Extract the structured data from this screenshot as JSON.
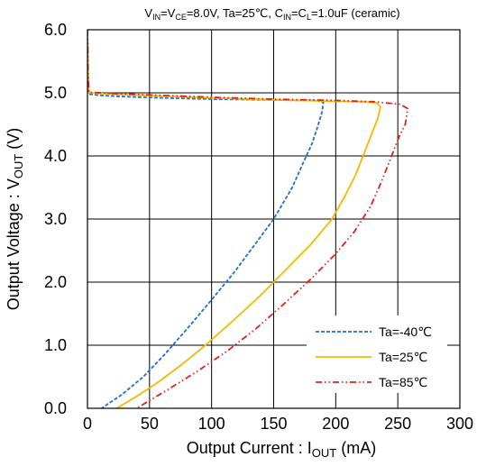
{
  "chart_data": {
    "type": "line",
    "subtitle": {
      "p1": "V",
      "p1_sub": "IN",
      "p2": "=V",
      "p2_sub": "CE",
      "p3": "=8.0V,  Ta=25℃, C",
      "p3_sub": "IN",
      "p4": "=C",
      "p4_sub": "L",
      "p5": "=1.0uF (ceramic)"
    },
    "xlabel": {
      "main": "Output Current : I",
      "sub": "OUT",
      "unit": " (mA)"
    },
    "ylabel": {
      "main": "Output Voltage : V",
      "sub": "OUT",
      "unit": " (V)"
    },
    "xlim": [
      0,
      300
    ],
    "ylim": [
      0,
      6
    ],
    "x_ticks": [
      "0",
      "50",
      "100",
      "150",
      "200",
      "250",
      "300"
    ],
    "y_ticks": [
      "0.0",
      "1.0",
      "2.0",
      "3.0",
      "4.0",
      "5.0",
      "6.0"
    ],
    "grid": true,
    "legend_position": "bottom-right",
    "series": [
      {
        "name": "Ta=-40℃",
        "color": "#1f6fd0",
        "dash": "dashed",
        "points": [
          [
            0,
            6.0
          ],
          [
            0.5,
            5.3
          ],
          [
            1,
            4.98
          ],
          [
            10,
            4.96
          ],
          [
            30,
            4.94
          ],
          [
            60,
            4.92
          ],
          [
            100,
            4.9
          ],
          [
            140,
            4.89
          ],
          [
            170,
            4.88
          ],
          [
            184,
            4.88
          ],
          [
            190,
            4.85
          ],
          [
            189,
            4.7
          ],
          [
            186,
            4.5
          ],
          [
            181,
            4.2
          ],
          [
            174,
            3.9
          ],
          [
            165,
            3.5
          ],
          [
            150,
            3.0
          ],
          [
            135,
            2.6
          ],
          [
            118,
            2.15
          ],
          [
            100,
            1.72
          ],
          [
            82,
            1.3
          ],
          [
            62,
            0.85
          ],
          [
            45,
            0.5
          ],
          [
            28,
            0.22
          ],
          [
            15,
            0.05
          ],
          [
            8,
            -0.05
          ]
        ]
      },
      {
        "name": "Ta=25℃",
        "color": "#f5b800",
        "dash": "solid",
        "points": [
          [
            0,
            6.0
          ],
          [
            0.5,
            5.3
          ],
          [
            1,
            5.0
          ],
          [
            20,
            4.98
          ],
          [
            60,
            4.95
          ],
          [
            100,
            4.92
          ],
          [
            150,
            4.89
          ],
          [
            190,
            4.87
          ],
          [
            220,
            4.86
          ],
          [
            233,
            4.84
          ],
          [
            236,
            4.78
          ],
          [
            234,
            4.6
          ],
          [
            230,
            4.4
          ],
          [
            224,
            4.1
          ],
          [
            216,
            3.7
          ],
          [
            207,
            3.35
          ],
          [
            197,
            3.0
          ],
          [
            180,
            2.6
          ],
          [
            160,
            2.2
          ],
          [
            140,
            1.8
          ],
          [
            118,
            1.4
          ],
          [
            95,
            1.0
          ],
          [
            75,
            0.68
          ],
          [
            56,
            0.4
          ],
          [
            38,
            0.17
          ],
          [
            26,
            0.03
          ],
          [
            20,
            -0.05
          ]
        ]
      },
      {
        "name": "Ta=85℃",
        "color": "#e02020",
        "dash": "dashdotdot",
        "points": [
          [
            0,
            6.0
          ],
          [
            0.5,
            5.3
          ],
          [
            1,
            5.01
          ],
          [
            20,
            4.99
          ],
          [
            60,
            4.96
          ],
          [
            100,
            4.93
          ],
          [
            150,
            4.9
          ],
          [
            200,
            4.88
          ],
          [
            230,
            4.86
          ],
          [
            252,
            4.82
          ],
          [
            258,
            4.75
          ],
          [
            256,
            4.5
          ],
          [
            251,
            4.3
          ],
          [
            245,
            4.0
          ],
          [
            237,
            3.6
          ],
          [
            228,
            3.2
          ],
          [
            215,
            2.8
          ],
          [
            200,
            2.45
          ],
          [
            180,
            2.05
          ],
          [
            158,
            1.65
          ],
          [
            135,
            1.25
          ],
          [
            112,
            0.9
          ],
          [
            88,
            0.58
          ],
          [
            65,
            0.3
          ],
          [
            48,
            0.1
          ],
          [
            38,
            -0.02
          ],
          [
            35,
            -0.05
          ]
        ]
      }
    ]
  }
}
